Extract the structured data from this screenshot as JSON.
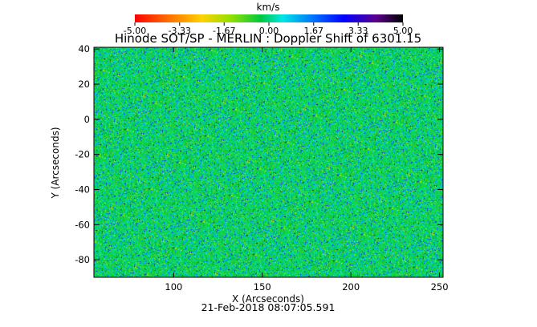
{
  "chart_data": {
    "type": "heatmap",
    "title": "Hinode SOT/SP - MERLIN : Doppler Shift of 6301.15",
    "xlabel": "X (Arcseconds)",
    "ylabel": "Y (Arcseconds)",
    "xlim": [
      55,
      252
    ],
    "ylim": [
      -90,
      41
    ],
    "x_ticks": [
      "100",
      "150",
      "200",
      "250"
    ],
    "y_ticks": [
      "40",
      "20",
      "0",
      "-20",
      "-40",
      "-60",
      "-80"
    ],
    "grid": false,
    "colorbar": {
      "label": "km/s",
      "range": [
        -5.0,
        5.0
      ],
      "ticks": [
        "-5.00",
        "-3.33",
        "-1.67",
        "0.00",
        "1.67",
        "3.33",
        "5.00"
      ],
      "placement": "top"
    },
    "value_distribution": "noisy Doppler field concentrated near 0 km/s (green) with frequent excursions to about +1.5 to +4 km/s (cyan to blue) and sparse values near -1 km/s (yellow-green)",
    "timestamp": "21-Feb-2018 08:07:05.591"
  },
  "colors": {
    "background": "#ffffff",
    "text": "#000000",
    "colormap": [
      "#ff0000",
      "#ff7f00",
      "#e6e600",
      "#00c800",
      "#00e6e6",
      "#0000ff",
      "#4b0082",
      "#000000"
    ]
  }
}
